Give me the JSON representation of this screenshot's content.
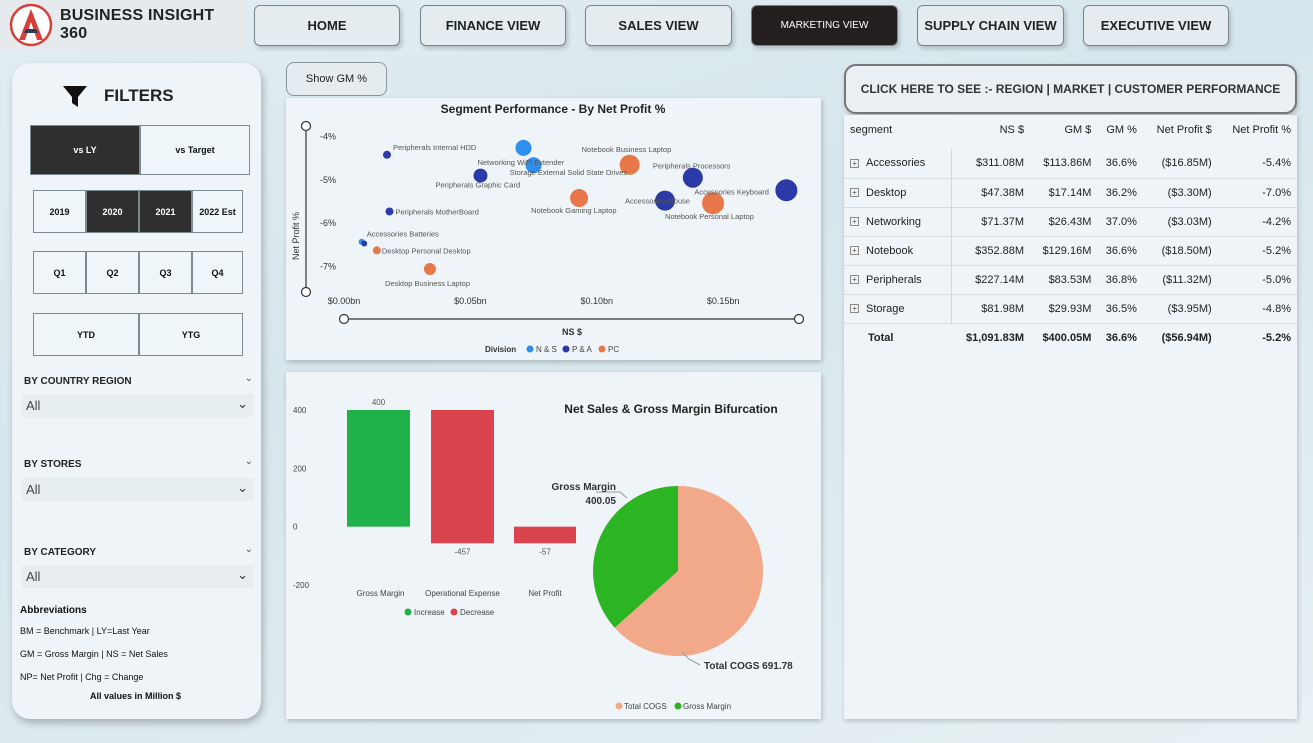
{
  "brand": {
    "title": "BUSINESS INSIGHT 360"
  },
  "nav": [
    {
      "label": "HOME",
      "active": false
    },
    {
      "label": "FINANCE VIEW",
      "active": false
    },
    {
      "label": "SALES VIEW",
      "active": false
    },
    {
      "label": "MARKETING VIEW",
      "active": true
    },
    {
      "label": "SUPPLY CHAIN VIEW",
      "active": false
    },
    {
      "label": "EXECUTIVE VIEW",
      "active": false
    }
  ],
  "filters": {
    "title": "FILTERS",
    "compare": [
      "vs LY",
      "vs Target"
    ],
    "years": [
      "2019",
      "2020",
      "2021",
      "2022 Est"
    ],
    "quarters": [
      "Q1",
      "Q2",
      "Q3",
      "Q4"
    ],
    "periods": [
      "YTD",
      "YTG"
    ],
    "country_label": "BY COUNTRY REGION",
    "country_value": "All",
    "stores_label": "BY STORES",
    "stores_value": "All",
    "category_label": "BY CATEGORY",
    "category_value": "All",
    "abbr_title": "Abbreviations",
    "abbr_1": "BM = Benchmark | LY=Last Year",
    "abbr_2": "GM = Gross Margin | NS = Net Sales",
    "abbr_3": "NP= Net Profit | Chg = Change",
    "abbr_4": "All values in Million $"
  },
  "show_gm_label": "Show GM %",
  "region_button": "CLICK HERE TO SEE :- REGION | MARKET | CUSTOMER PERFORMANCE",
  "colors": {
    "ns": "#2e8ff0",
    "pa": "#2c3aa8",
    "pc": "#e8784a",
    "increase": "#1fb14a",
    "decrease": "#d9444f",
    "cogs": "#f1a98a",
    "gm": "#2bb523"
  },
  "scatter": {
    "title": "Segment Performance - By Net Profit %",
    "xlabel": "NS $",
    "ylabel": "Net Profit %",
    "legend_title": "Division",
    "legend": [
      "N & S",
      "P & A",
      "PC"
    ]
  },
  "waterfall": {
    "title": "Net Sales & Gross Margin Bifurcation",
    "legend": [
      "Increase",
      "Decrease"
    ]
  },
  "pie": {
    "label_gm_name": "Gross Margin",
    "label_gm_value": "400.05",
    "label_cogs": "Total COGS 691.78",
    "legend": [
      "Total COGS",
      "Gross Margin"
    ]
  },
  "chart_data": [
    {
      "type": "scatter",
      "title": "Segment Performance - By Net Profit %",
      "xlabel": "NS $",
      "ylabel": "Net Profit %",
      "x_ticks": [
        "$0.00bn",
        "$0.05bn",
        "$0.10bn",
        "$0.15bn"
      ],
      "y_ticks": [
        "-4%",
        "-5%",
        "-6%",
        "-7%"
      ],
      "xlim": [
        0,
        0.18
      ],
      "ylim": [
        -7.5,
        -3.8
      ],
      "series": [
        {
          "name": "N & S",
          "points": [
            {
              "label": "Networking WiFi Extender",
              "x": 0.071,
              "y": -4.26,
              "size": 8
            },
            {
              "label": "Storage External Solid State Drives",
              "x": 0.075,
              "y": -4.66,
              "size": 8
            },
            {
              "label": "Accessories Batteries",
              "x": 0.007,
              "y": -6.43,
              "size": 3
            }
          ]
        },
        {
          "name": "P & A",
          "points": [
            {
              "label": "Peripherals Internal HDD",
              "x": 0.017,
              "y": -4.42,
              "size": 4
            },
            {
              "label": "Peripherals Graphic Card",
              "x": 0.054,
              "y": -4.9,
              "size": 7
            },
            {
              "label": "Peripherals Processors",
              "x": 0.138,
              "y": -4.95,
              "size": 10
            },
            {
              "label": "Accessories Keyboard",
              "x": 0.175,
              "y": -5.24,
              "size": 11
            },
            {
              "label": "Accessories Mouse",
              "x": 0.127,
              "y": -5.48,
              "size": 10
            },
            {
              "label": "Peripherals MotherBoard",
              "x": 0.018,
              "y": -5.73,
              "size": 4
            },
            {
              "label": "Accessories Batteries",
              "x": 0.008,
              "y": -6.47,
              "size": 3
            }
          ]
        },
        {
          "name": "PC",
          "points": [
            {
              "label": "Notebook Business Laptop",
              "x": 0.113,
              "y": -4.65,
              "size": 10
            },
            {
              "label": "Notebook Gaming Laptop",
              "x": 0.093,
              "y": -5.42,
              "size": 9
            },
            {
              "label": "Notebook Personal Laptop",
              "x": 0.146,
              "y": -5.54,
              "size": 11
            },
            {
              "label": "Desktop Personal Desktop",
              "x": 0.013,
              "y": -6.63,
              "size": 4
            },
            {
              "label": "Desktop Business Laptop",
              "x": 0.034,
              "y": -7.06,
              "size": 6
            }
          ]
        }
      ]
    },
    {
      "type": "bar",
      "subtype": "waterfall",
      "title": "Net Sales & Gross Margin Bifurcation",
      "categories": [
        "Gross Margin",
        "Operational Expense",
        "Net Profit"
      ],
      "values": [
        400,
        -457,
        -57
      ],
      "data_labels": [
        "400",
        "-457",
        "-57"
      ],
      "y_ticks": [
        "400",
        "200",
        "0",
        "-200"
      ],
      "ylim": [
        -200,
        400
      ],
      "series": [
        {
          "name": "Increase"
        },
        {
          "name": "Decrease"
        }
      ]
    },
    {
      "type": "pie",
      "categories": [
        "Total COGS",
        "Gross Margin"
      ],
      "values": [
        691.78,
        400.05
      ]
    },
    {
      "type": "table",
      "columns": [
        "segment",
        "NS $",
        "GM $",
        "GM %",
        "Net Profit $",
        "Net Profit %"
      ],
      "rows": [
        [
          "Accessories",
          "$311.08M",
          "$113.86M",
          "36.6%",
          "($16.85M)",
          "-5.4%"
        ],
        [
          "Desktop",
          "$47.38M",
          "$17.14M",
          "36.2%",
          "($3.30M)",
          "-7.0%"
        ],
        [
          "Networking",
          "$71.37M",
          "$26.43M",
          "37.0%",
          "($3.03M)",
          "-4.2%"
        ],
        [
          "Notebook",
          "$352.88M",
          "$129.16M",
          "36.6%",
          "($18.50M)",
          "-5.2%"
        ],
        [
          "Peripherals",
          "$227.14M",
          "$83.53M",
          "36.8%",
          "($11.32M)",
          "-5.0%"
        ],
        [
          "Storage",
          "$81.98M",
          "$29.93M",
          "36.5%",
          "($3.95M)",
          "-4.8%"
        ]
      ],
      "total": [
        "Total",
        "$1,091.83M",
        "$400.05M",
        "36.6%",
        "($56.94M)",
        "-5.2%"
      ]
    }
  ]
}
